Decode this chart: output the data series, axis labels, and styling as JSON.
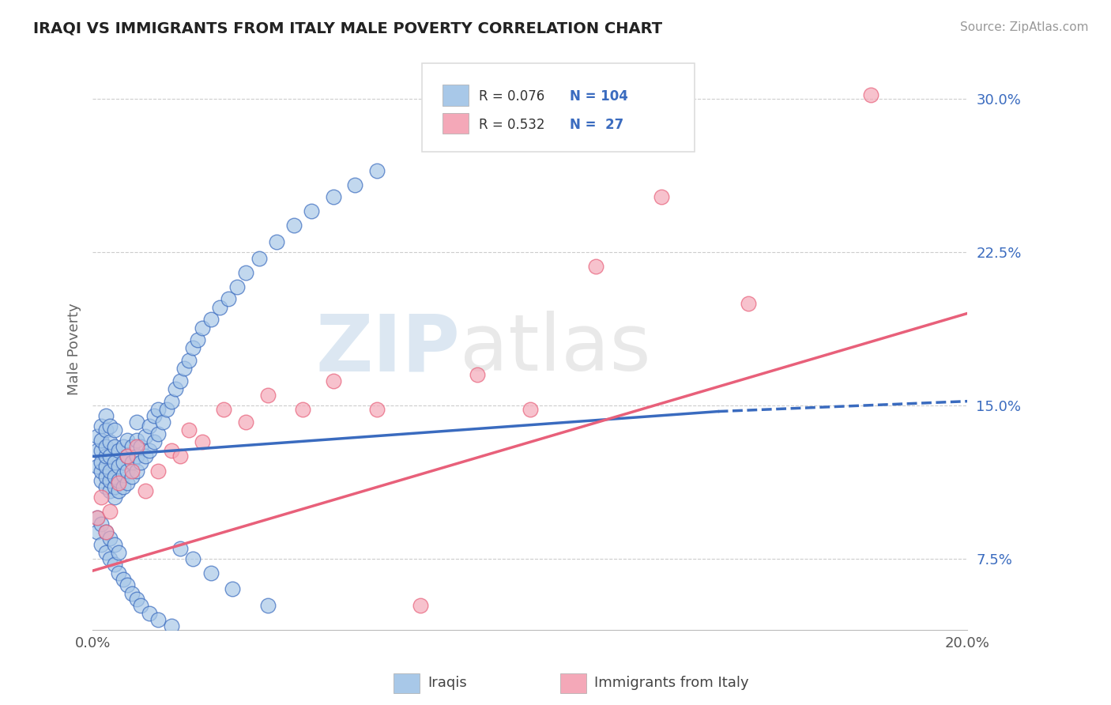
{
  "title": "IRAQI VS IMMIGRANTS FROM ITALY MALE POVERTY CORRELATION CHART",
  "source": "Source: ZipAtlas.com",
  "ylabel": "Male Poverty",
  "xlim": [
    0.0,
    0.2
  ],
  "ylim": [
    0.04,
    0.315
  ],
  "yticks": [
    0.075,
    0.15,
    0.225,
    0.3
  ],
  "ytick_labels": [
    "7.5%",
    "15.0%",
    "22.5%",
    "30.0%"
  ],
  "xticks": [
    0.0,
    0.05,
    0.1,
    0.15,
    0.2
  ],
  "xtick_labels": [
    "0.0%",
    "",
    "",
    "",
    "20.0%"
  ],
  "legend_r1": "R = 0.076",
  "legend_n1": "N = 104",
  "legend_r2": "R = 0.532",
  "legend_n2": "N =  27",
  "label1": "Iraqis",
  "label2": "Immigrants from Italy",
  "color1": "#a8c8e8",
  "color2": "#f4a8b8",
  "line_color1": "#3a6bbf",
  "line_color2": "#e8607a",
  "watermark_zip": "ZIP",
  "watermark_atlas": "atlas",
  "iraq_trend_x0": 0.0,
  "iraq_trend_x1": 0.143,
  "iraq_trend_y0": 0.125,
  "iraq_trend_y1": 0.147,
  "iraq_trend_dash_x0": 0.143,
  "iraq_trend_dash_x1": 0.2,
  "iraq_trend_dash_y0": 0.147,
  "iraq_trend_dash_y1": 0.152,
  "italy_trend_x0": 0.0,
  "italy_trend_x1": 0.2,
  "italy_trend_y0": 0.069,
  "italy_trend_y1": 0.195,
  "iraqis_x": [
    0.001,
    0.001,
    0.001,
    0.002,
    0.002,
    0.002,
    0.002,
    0.002,
    0.002,
    0.003,
    0.003,
    0.003,
    0.003,
    0.003,
    0.003,
    0.003,
    0.004,
    0.004,
    0.004,
    0.004,
    0.004,
    0.004,
    0.005,
    0.005,
    0.005,
    0.005,
    0.005,
    0.005,
    0.006,
    0.006,
    0.006,
    0.006,
    0.007,
    0.007,
    0.007,
    0.007,
    0.008,
    0.008,
    0.008,
    0.008,
    0.009,
    0.009,
    0.009,
    0.01,
    0.01,
    0.01,
    0.01,
    0.011,
    0.011,
    0.012,
    0.012,
    0.013,
    0.013,
    0.014,
    0.014,
    0.015,
    0.015,
    0.016,
    0.017,
    0.018,
    0.019,
    0.02,
    0.021,
    0.022,
    0.023,
    0.024,
    0.025,
    0.027,
    0.029,
    0.031,
    0.033,
    0.035,
    0.038,
    0.042,
    0.046,
    0.05,
    0.055,
    0.06,
    0.065,
    0.001,
    0.001,
    0.002,
    0.002,
    0.003,
    0.003,
    0.004,
    0.004,
    0.005,
    0.005,
    0.006,
    0.006,
    0.007,
    0.008,
    0.009,
    0.01,
    0.011,
    0.013,
    0.015,
    0.018,
    0.02,
    0.023,
    0.027,
    0.032,
    0.04
  ],
  "iraqis_y": [
    0.12,
    0.128,
    0.135,
    0.113,
    0.118,
    0.122,
    0.128,
    0.133,
    0.14,
    0.11,
    0.115,
    0.12,
    0.125,
    0.13,
    0.138,
    0.145,
    0.108,
    0.113,
    0.118,
    0.125,
    0.132,
    0.14,
    0.105,
    0.11,
    0.115,
    0.122,
    0.13,
    0.138,
    0.108,
    0.113,
    0.12,
    0.128,
    0.11,
    0.116,
    0.122,
    0.13,
    0.112,
    0.118,
    0.125,
    0.133,
    0.115,
    0.122,
    0.13,
    0.118,
    0.125,
    0.133,
    0.142,
    0.122,
    0.13,
    0.125,
    0.135,
    0.128,
    0.14,
    0.132,
    0.145,
    0.136,
    0.148,
    0.142,
    0.148,
    0.152,
    0.158,
    0.162,
    0.168,
    0.172,
    0.178,
    0.182,
    0.188,
    0.192,
    0.198,
    0.202,
    0.208,
    0.215,
    0.222,
    0.23,
    0.238,
    0.245,
    0.252,
    0.258,
    0.265,
    0.088,
    0.095,
    0.082,
    0.092,
    0.078,
    0.088,
    0.075,
    0.085,
    0.072,
    0.082,
    0.068,
    0.078,
    0.065,
    0.062,
    0.058,
    0.055,
    0.052,
    0.048,
    0.045,
    0.042,
    0.08,
    0.075,
    0.068,
    0.06,
    0.052
  ],
  "italy_x": [
    0.001,
    0.002,
    0.003,
    0.004,
    0.006,
    0.008,
    0.009,
    0.01,
    0.012,
    0.015,
    0.018,
    0.02,
    0.022,
    0.025,
    0.03,
    0.035,
    0.04,
    0.048,
    0.055,
    0.065,
    0.075,
    0.088,
    0.1,
    0.115,
    0.13,
    0.15,
    0.178
  ],
  "italy_y": [
    0.095,
    0.105,
    0.088,
    0.098,
    0.112,
    0.125,
    0.118,
    0.13,
    0.108,
    0.118,
    0.128,
    0.125,
    0.138,
    0.132,
    0.148,
    0.142,
    0.155,
    0.148,
    0.162,
    0.148,
    0.052,
    0.165,
    0.148,
    0.218,
    0.252,
    0.2,
    0.302
  ]
}
